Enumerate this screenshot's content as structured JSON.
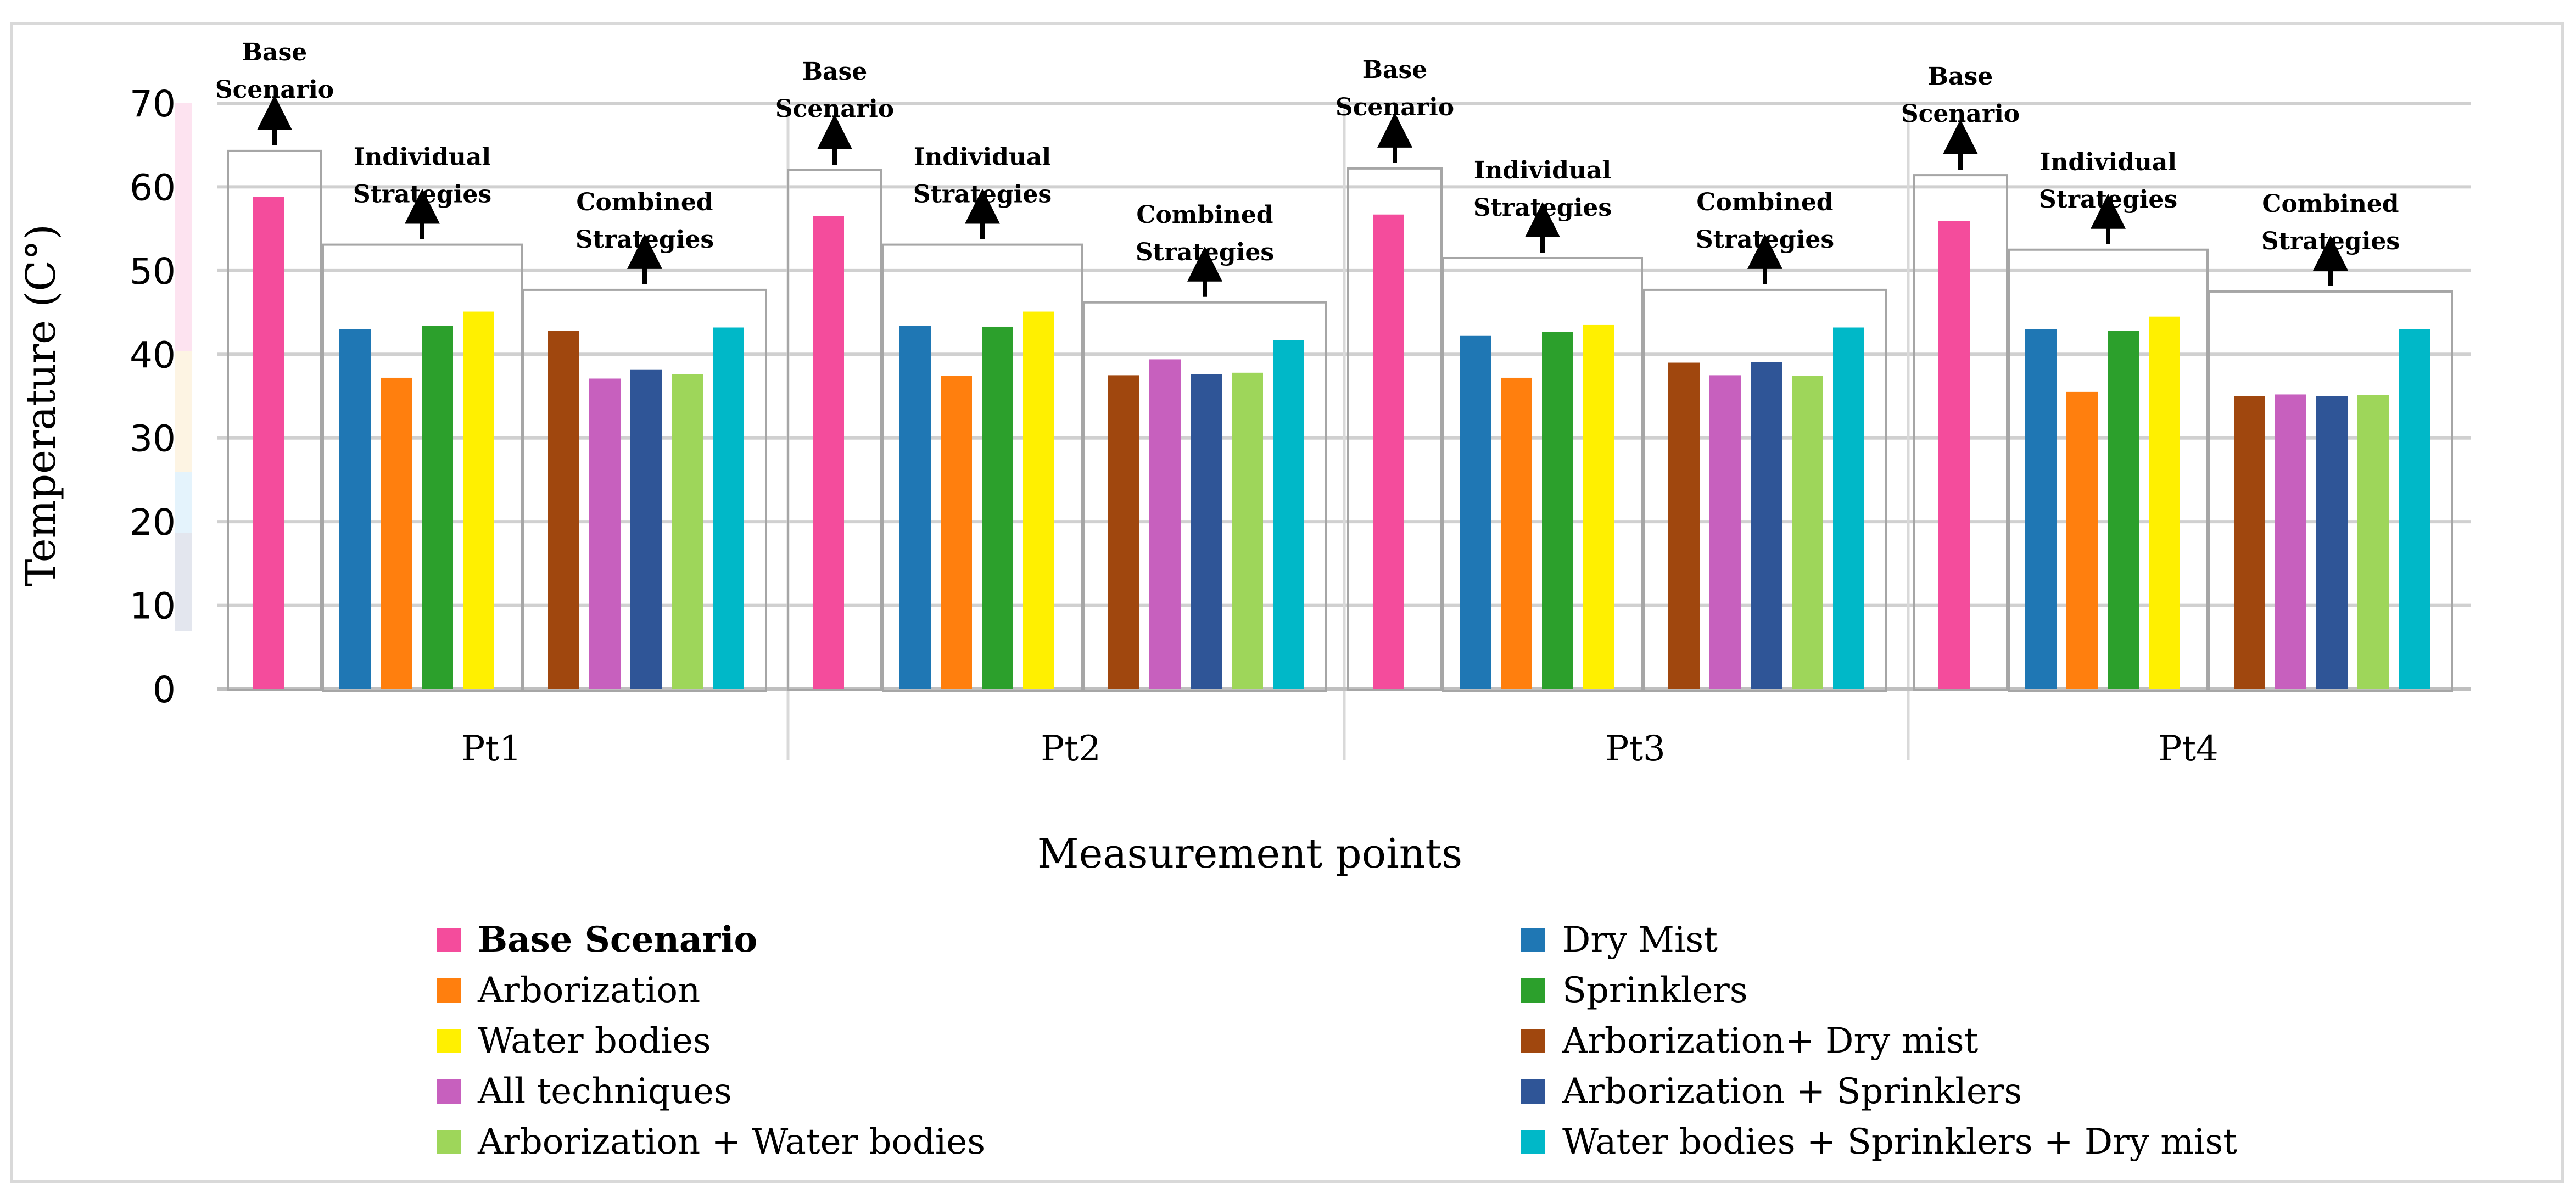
{
  "chart_data": {
    "type": "bar",
    "ylabel": "Temperature (C°)",
    "xlabel": "Measurement points",
    "ylim": [
      0,
      70
    ],
    "yticks": [
      0,
      10,
      20,
      30,
      40,
      50,
      60,
      70
    ],
    "grid": true,
    "categories": [
      "Pt1",
      "Pt2",
      "Pt3",
      "Pt4"
    ],
    "groups": {
      "base": "Base Scenario",
      "individual": "Individual Strategies",
      "combined": "Combined Strategies"
    },
    "series": [
      {
        "name": "Base Scenario",
        "color": "#F44C9C",
        "group": "base",
        "values": [
          58.8,
          56.5,
          56.7,
          55.9
        ]
      },
      {
        "name": "Dry Mist",
        "color": "#1F77B4",
        "group": "individual",
        "values": [
          43.0,
          43.4,
          42.2,
          43.0
        ]
      },
      {
        "name": "Arborization",
        "color": "#FF7F0E",
        "group": "individual",
        "values": [
          37.2,
          37.4,
          37.2,
          35.5
        ]
      },
      {
        "name": "Sprinklers",
        "color": "#2CA02C",
        "group": "individual",
        "values": [
          43.4,
          43.3,
          42.7,
          42.8
        ]
      },
      {
        "name": "Water bodies",
        "color": "#FFF000",
        "group": "individual",
        "values": [
          45.1,
          45.1,
          43.5,
          44.5
        ]
      },
      {
        "name": "Arborization+ Dry mist",
        "color": "#A0470E",
        "group": "combined",
        "values": [
          42.8,
          37.5,
          39.0,
          35.0
        ]
      },
      {
        "name": "All techniques",
        "color": "#C760BE",
        "group": "combined",
        "values": [
          37.1,
          39.4,
          37.5,
          35.2
        ]
      },
      {
        "name": "Arborization + Sprinklers",
        "color": "#2F5597",
        "group": "combined",
        "values": [
          38.2,
          37.6,
          39.1,
          35.0
        ]
      },
      {
        "name": "Arborization + Water bodies",
        "color": "#9ED65A",
        "group": "combined",
        "values": [
          37.6,
          37.8,
          37.4,
          35.1
        ]
      },
      {
        "name": "Water bodies + Sprinklers + Dry mist",
        "color": "#00B8C8",
        "group": "combined",
        "values": [
          43.2,
          41.7,
          43.2,
          43.0
        ]
      }
    ]
  }
}
